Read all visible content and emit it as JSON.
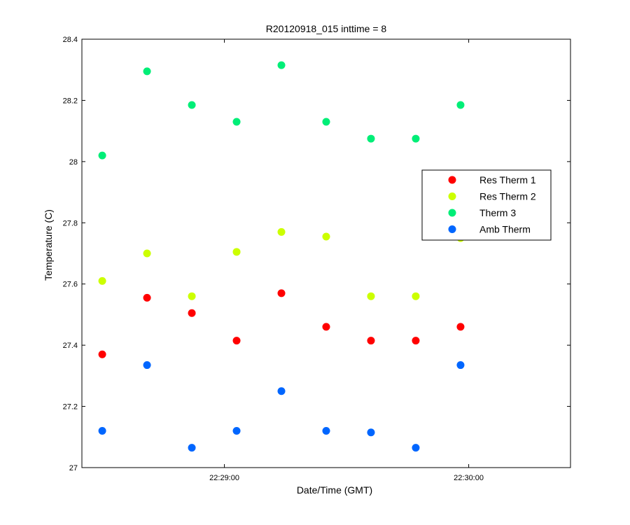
{
  "chart_data": {
    "type": "scatter",
    "title": "R20120918_015 inttime = 8",
    "xlabel": "Date/Time (GMT)",
    "ylabel": "Temperature (C)",
    "xlim": [
      "22:28:25",
      "22:30:25"
    ],
    "ylim": [
      27.0,
      28.4
    ],
    "x_ticks": [
      "22:29:00",
      "22:30:00"
    ],
    "y_ticks": [
      "27",
      "27.2",
      "27.4",
      "27.6",
      "27.8",
      "28",
      "28.2",
      "28.4"
    ],
    "grid": false,
    "legend_position": "right",
    "x": [
      "22:28:30",
      "22:28:41",
      "22:28:52",
      "22:29:03",
      "22:29:14",
      "22:29:25",
      "22:29:36",
      "22:29:47",
      "22:29:58"
    ],
    "series": [
      {
        "name": "Res Therm 1",
        "color": "#ff0000",
        "values": [
          27.37,
          27.555,
          27.505,
          27.415,
          27.57,
          27.46,
          27.415,
          27.415,
          27.46
        ]
      },
      {
        "name": "Res Therm 2",
        "color": "#ccff00",
        "values": [
          27.61,
          27.7,
          27.56,
          27.705,
          27.77,
          27.755,
          27.56,
          27.56,
          27.75
        ]
      },
      {
        "name": "Therm 3",
        "color": "#00ee77",
        "values": [
          28.02,
          28.295,
          28.185,
          28.13,
          28.315,
          28.13,
          28.075,
          28.075,
          28.185
        ]
      },
      {
        "name": "Amb Therm",
        "color": "#0066ff",
        "values": [
          27.12,
          27.335,
          27.065,
          27.12,
          27.25,
          27.12,
          27.115,
          27.065,
          27.335
        ]
      }
    ]
  }
}
